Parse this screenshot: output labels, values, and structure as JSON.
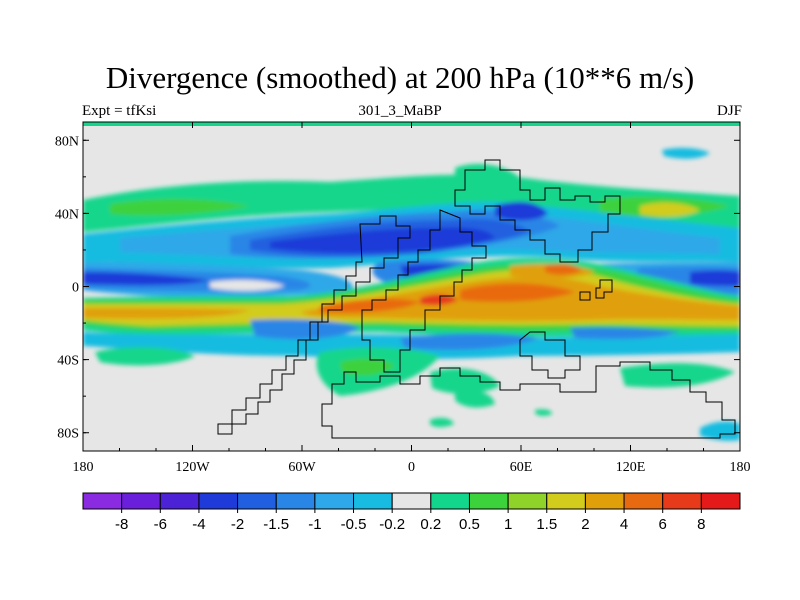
{
  "chart_data": {
    "type": "heatmap",
    "title": "Divergence (smoothed) at 200 hPa (10**6 m/s)",
    "subtitle_left": "Expt = tfKsi",
    "subtitle_center": "301_3_MaBP",
    "subtitle_right": "DJF",
    "x_ticks": [
      {
        "value": -180,
        "label": "180"
      },
      {
        "value": -120,
        "label": "120W"
      },
      {
        "value": -60,
        "label": "60W"
      },
      {
        "value": 0,
        "label": "0"
      },
      {
        "value": 60,
        "label": "60E"
      },
      {
        "value": 120,
        "label": "120E"
      },
      {
        "value": 180,
        "label": "180"
      }
    ],
    "y_ticks": [
      {
        "value": 80,
        "label": "80N"
      },
      {
        "value": 40,
        "label": "40N"
      },
      {
        "value": 0,
        "label": "0"
      },
      {
        "value": -40,
        "label": "40S"
      },
      {
        "value": -80,
        "label": "80S"
      }
    ],
    "xlim": [
      -180,
      180
    ],
    "ylim": [
      -90,
      90
    ],
    "colorbar": {
      "levels": [
        "-8",
        "-6",
        "-4",
        "-2",
        "-1.5",
        "-1",
        "-0.5",
        "-0.2",
        "0.2",
        "0.5",
        "1",
        "1.5",
        "2",
        "4",
        "6",
        "8"
      ],
      "colors": [
        "#8A2BE2",
        "#6A1FDC",
        "#4B22D6",
        "#1E3AD8",
        "#2060E0",
        "#2A86E6",
        "#2EA8E8",
        "#18BCE0",
        "#E6E6E6",
        "#12D68C",
        "#3CD23C",
        "#8ED22A",
        "#D2CC1C",
        "#E0A00A",
        "#E86A10",
        "#E63A1A",
        "#E41A1A"
      ]
    }
  }
}
